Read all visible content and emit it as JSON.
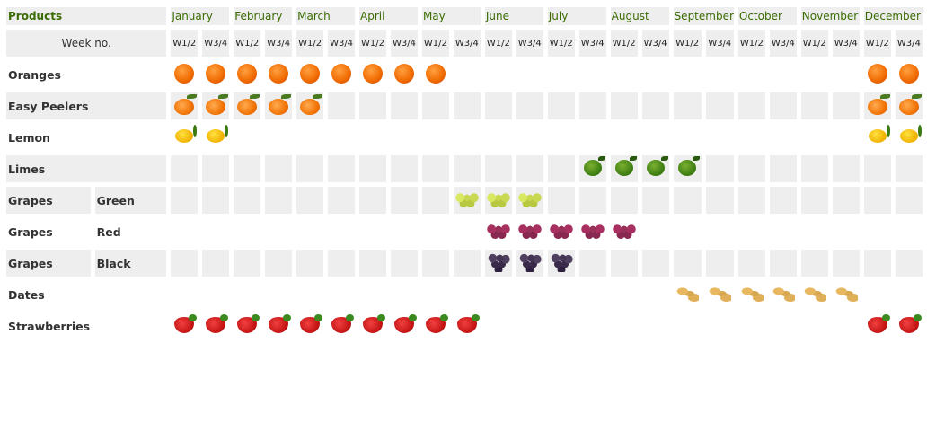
{
  "header": {
    "products_label": "Products",
    "week_label": "Week no.",
    "months": [
      "January",
      "February",
      "March",
      "April",
      "May",
      "June",
      "July",
      "August",
      "September",
      "October",
      "November",
      "December"
    ],
    "week_halves": [
      "W1/2",
      "W3/4"
    ]
  },
  "colors": {
    "header_text": "#3a6b00",
    "cell_bg": "#eeeeee",
    "label_text": "#333333"
  },
  "products": [
    {
      "name": "Oranges",
      "variety": "",
      "icon": "orange-icon",
      "cls": "orange",
      "shaded": false,
      "available": [
        0,
        1,
        2,
        3,
        4,
        5,
        6,
        7,
        8,
        22,
        23
      ]
    },
    {
      "name": "Easy Peelers",
      "variety": "",
      "icon": "easy-peeler-icon",
      "cls": "peeler",
      "shaded": true,
      "available": [
        0,
        1,
        2,
        3,
        4,
        22,
        23
      ]
    },
    {
      "name": "Lemon",
      "variety": "",
      "icon": "lemon-icon",
      "cls": "lemon",
      "shaded": false,
      "available": [
        0,
        1,
        22,
        23
      ]
    },
    {
      "name": "Limes",
      "variety": "",
      "icon": "lime-icon",
      "cls": "lime",
      "shaded": true,
      "available": [
        13,
        14,
        15,
        16
      ]
    },
    {
      "name": "Grapes",
      "variety": "Green",
      "icon": "green-grapes-icon",
      "cls": "grape green",
      "shaded": true,
      "available": [
        9,
        10,
        11
      ]
    },
    {
      "name": "Grapes",
      "variety": "Red",
      "icon": "red-grapes-icon",
      "cls": "grape red",
      "shaded": false,
      "available": [
        10,
        11,
        12,
        13,
        14
      ]
    },
    {
      "name": "Grapes",
      "variety": "Black",
      "icon": "black-grapes-icon",
      "cls": "grape black",
      "shaded": true,
      "available": [
        10,
        11,
        12
      ]
    },
    {
      "name": "Dates",
      "variety": "",
      "icon": "dates-icon",
      "cls": "date",
      "shaded": false,
      "available": [
        16,
        17,
        18,
        19,
        20,
        21
      ]
    },
    {
      "name": "Strawberries",
      "variety": "",
      "icon": "strawberry-icon",
      "cls": "straw",
      "shaded": false,
      "available": [
        0,
        1,
        2,
        3,
        4,
        5,
        6,
        7,
        8,
        9,
        22,
        23
      ]
    }
  ]
}
